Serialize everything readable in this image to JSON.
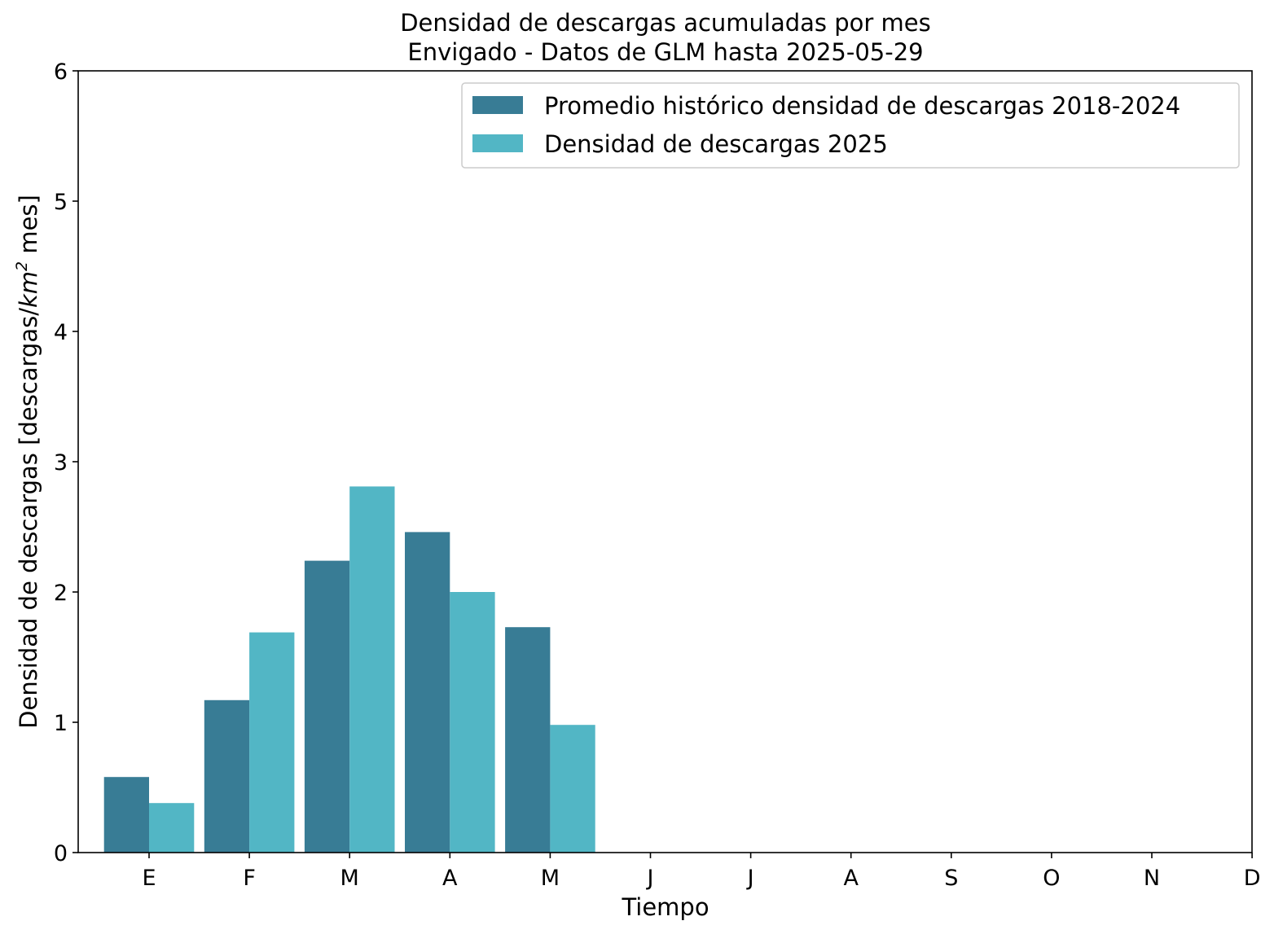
{
  "chart_data": {
    "type": "bar",
    "title": "Densidad de descargas acumuladas por mes",
    "subtitle": "Envigado - Datos de GLM hasta 2025-05-29",
    "xlabel": "Tiempo",
    "ylabel_prefix": "Densidad de descargas [descargas/",
    "ylabel_unit": "km",
    "ylabel_sup": "2",
    "ylabel_suffix": " mes]",
    "ylim": [
      0,
      6
    ],
    "yticks": [
      0,
      1,
      2,
      3,
      4,
      5,
      6
    ],
    "categories": [
      "E",
      "F",
      "M",
      "A",
      "M",
      "J",
      "J",
      "A",
      "S",
      "O",
      "N",
      "D"
    ],
    "series": [
      {
        "name": "Promedio histórico densidad de descargas 2018-2024",
        "color": "#387c95",
        "values": [
          0.58,
          1.17,
          2.24,
          2.46,
          1.73,
          null,
          null,
          null,
          null,
          null,
          null,
          null
        ]
      },
      {
        "name": "Densidad de descargas 2025",
        "color": "#52b6c5",
        "values": [
          0.38,
          1.69,
          2.81,
          2.0,
          0.98,
          null,
          null,
          null,
          null,
          null,
          null,
          null
        ]
      }
    ],
    "grid": false,
    "legend_position": "top-right"
  }
}
